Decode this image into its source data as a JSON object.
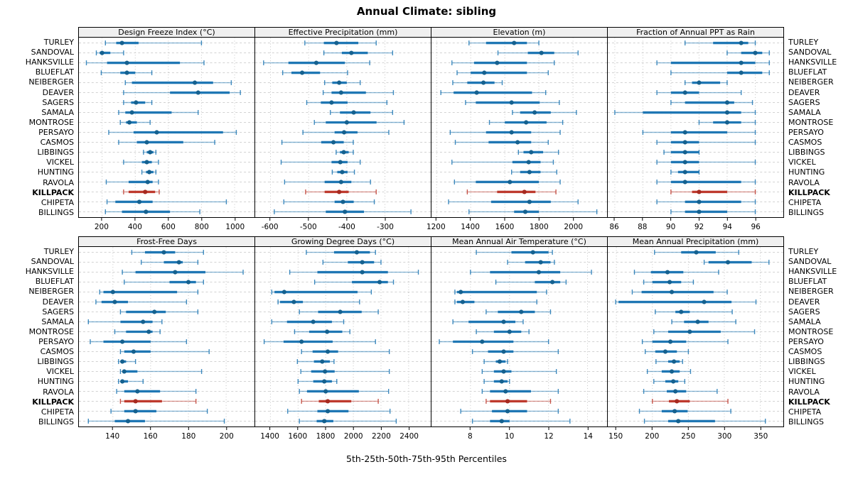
{
  "title": "Annual Climate: sibling",
  "footer": "5th-25th-50th-75th-95th Percentiles",
  "highlight_station": "KILLPACK",
  "stations": [
    "TURLEY",
    "SANDOVAL",
    "HANKSVILLE",
    "BLUEFLAT",
    "NEIBERGER",
    "DEAVER",
    "SAGERS",
    "SAMALA",
    "MONTROSE",
    "PERSAYO",
    "CASMOS",
    "LIBBINGS",
    "VICKEL",
    "HUNTING",
    "RAVOLA",
    "KILLPACK",
    "CHIPETA",
    "BILLINGS"
  ],
  "colors": {
    "series": "#1F77B4",
    "series_dot": "#15618F",
    "highlight": "#BE3A2E",
    "highlight_dot": "#A62A20",
    "grid_v": "#C4C4C4",
    "grid_h": "#D2D2D2",
    "header_bg": "#F0F0F0",
    "border": "#000000"
  },
  "chart_data": {
    "type": "dotplot",
    "subtype": "percentile-interval (5-25-50-75-95), lattice-style trellis, 2 rows x 4 panels",
    "percentiles": [
      5,
      25,
      50,
      75,
      95
    ],
    "legend": "none",
    "grid": "dashed",
    "panels": [
      {
        "title": "Design Freeze Index (°C)",
        "xlim": [
          60,
          1120
        ],
        "ticks": [
          200,
          400,
          600,
          800,
          1000
        ],
        "rows": [
          [
            220,
            285,
            320,
            420,
            800
          ],
          [
            165,
            185,
            200,
            250,
            330
          ],
          [
            105,
            230,
            350,
            670,
            815
          ],
          [
            195,
            310,
            350,
            400,
            500
          ],
          [
            340,
            380,
            760,
            870,
            980
          ],
          [
            330,
            610,
            780,
            970,
            1035
          ],
          [
            330,
            375,
            405,
            460,
            500
          ],
          [
            300,
            340,
            380,
            620,
            780
          ],
          [
            310,
            345,
            365,
            410,
            490
          ],
          [
            240,
            390,
            530,
            930,
            1010
          ],
          [
            300,
            410,
            470,
            690,
            880
          ],
          [
            450,
            470,
            490,
            510,
            525
          ],
          [
            330,
            440,
            470,
            500,
            540
          ],
          [
            440,
            465,
            485,
            510,
            525
          ],
          [
            225,
            360,
            475,
            505,
            540
          ],
          [
            330,
            360,
            460,
            520,
            545
          ],
          [
            230,
            280,
            425,
            505,
            950
          ],
          [
            220,
            320,
            465,
            610,
            790
          ]
        ]
      },
      {
        "title": "Effective Precipitation (mm)",
        "xlim": [
          -640,
          -180
        ],
        "ticks": [
          -600,
          -500,
          -400,
          -300
        ],
        "rows": [
          [
            -510,
            -460,
            -427,
            -370,
            -323
          ],
          [
            -460,
            -413,
            -388,
            -345,
            -280
          ],
          [
            -618,
            -553,
            -480,
            -405,
            -340
          ],
          [
            -568,
            -545,
            -517,
            -470,
            -398
          ],
          [
            -458,
            -438,
            -420,
            -400,
            -365
          ],
          [
            -462,
            -440,
            -415,
            -350,
            -278
          ],
          [
            -505,
            -468,
            -440,
            -398,
            -295
          ],
          [
            -443,
            -418,
            -382,
            -338,
            -280
          ],
          [
            -485,
            -455,
            -400,
            -322,
            -250
          ],
          [
            -515,
            -432,
            -407,
            -372,
            -290
          ],
          [
            -570,
            -467,
            -435,
            -408,
            -383
          ],
          [
            -428,
            -418,
            -408,
            -395,
            -383
          ],
          [
            -572,
            -440,
            -417,
            -398,
            -365
          ],
          [
            -438,
            -425,
            -412,
            -398,
            -380
          ],
          [
            -563,
            -458,
            -415,
            -388,
            -338
          ],
          [
            -508,
            -458,
            -420,
            -395,
            -323
          ],
          [
            -565,
            -432,
            -410,
            -382,
            -328
          ],
          [
            -590,
            -455,
            -405,
            -355,
            -232
          ]
        ]
      },
      {
        "title": "Elevation (m)",
        "xlim": [
          1170,
          2200
        ],
        "ticks": [
          1200,
          1400,
          1600,
          1800,
          2000
        ],
        "rows": [
          [
            1390,
            1490,
            1655,
            1730,
            1800
          ],
          [
            1560,
            1735,
            1815,
            1890,
            2030
          ],
          [
            1290,
            1420,
            1555,
            1730,
            1890
          ],
          [
            1320,
            1400,
            1480,
            1730,
            1855
          ],
          [
            1295,
            1380,
            1475,
            1540,
            1585
          ],
          [
            1225,
            1300,
            1435,
            1760,
            1840
          ],
          [
            1370,
            1430,
            1640,
            1805,
            1920
          ],
          [
            1645,
            1690,
            1775,
            1870,
            2020
          ],
          [
            1510,
            1600,
            1725,
            1845,
            1940
          ],
          [
            1280,
            1490,
            1640,
            1755,
            1925
          ],
          [
            1310,
            1505,
            1675,
            1755,
            1855
          ],
          [
            1680,
            1710,
            1755,
            1825,
            1915
          ],
          [
            1290,
            1645,
            1740,
            1810,
            1885
          ],
          [
            1640,
            1690,
            1745,
            1810,
            1905
          ],
          [
            1305,
            1430,
            1630,
            1800,
            1925
          ],
          [
            1380,
            1555,
            1715,
            1780,
            1900
          ],
          [
            1270,
            1520,
            1745,
            1870,
            2030
          ],
          [
            1390,
            1655,
            1720,
            1800,
            2140
          ]
        ]
      },
      {
        "title": "Fraction of Annual PPT as Rain",
        "xlim": [
          85.5,
          98
        ],
        "ticks": [
          86,
          88,
          90,
          92,
          94,
          96
        ],
        "rows": [
          [
            91,
            93,
            95,
            95.5,
            96
          ],
          [
            94,
            95,
            96,
            96.5,
            97
          ],
          [
            89,
            90,
            95,
            96,
            97
          ],
          [
            90,
            94,
            95,
            96.5,
            97
          ],
          [
            91,
            91.5,
            92,
            93.5,
            94
          ],
          [
            89,
            90,
            91,
            92,
            95
          ],
          [
            90,
            91,
            94,
            94.5,
            95.8
          ],
          [
            86,
            88,
            94,
            95,
            96
          ],
          [
            92,
            93,
            94,
            95,
            96
          ],
          [
            88,
            90,
            91,
            94,
            96
          ],
          [
            89,
            90,
            91,
            92,
            96
          ],
          [
            89.5,
            90,
            91,
            92,
            92
          ],
          [
            89,
            90,
            91,
            92,
            96
          ],
          [
            90,
            90.5,
            91,
            92,
            92
          ],
          [
            89,
            90,
            91,
            95,
            96
          ],
          [
            90,
            91.5,
            92,
            94,
            96
          ],
          [
            89,
            91,
            92,
            95,
            96
          ],
          [
            90,
            91,
            92,
            94,
            96
          ]
        ]
      },
      {
        "title": "Frost-Free Days",
        "xlim": [
          122,
          215
        ],
        "ticks": [
          140,
          160,
          180,
          200
        ],
        "rows": [
          [
            150,
            157,
            167,
            173,
            188
          ],
          [
            155,
            167,
            175,
            177,
            185
          ],
          [
            145,
            152,
            173,
            189,
            209
          ],
          [
            146,
            170,
            180,
            184,
            188
          ],
          [
            133,
            135,
            140,
            174,
            185
          ],
          [
            131,
            134,
            141,
            148,
            179
          ],
          [
            144,
            147,
            162,
            168,
            185
          ],
          [
            127,
            144,
            156,
            161,
            166
          ],
          [
            141,
            147,
            159,
            161,
            165
          ],
          [
            128,
            135,
            145,
            160,
            179
          ],
          [
            144,
            146,
            151,
            160,
            191
          ],
          [
            143,
            144,
            145,
            147,
            152
          ],
          [
            144,
            145,
            146,
            153,
            187
          ],
          [
            143,
            144,
            145,
            148,
            156
          ],
          [
            142,
            146,
            153,
            165,
            184
          ],
          [
            144,
            146,
            152,
            166,
            184
          ],
          [
            139,
            146,
            152,
            163,
            190
          ],
          [
            127,
            141,
            148,
            157,
            199
          ]
        ]
      },
      {
        "title": "Growing Degree Days (°C)",
        "xlim": [
          1290,
          2560
        ],
        "ticks": [
          1400,
          1600,
          1800,
          2000,
          2200,
          2400
        ],
        "rows": [
          [
            1660,
            1860,
            2025,
            2120,
            2160
          ],
          [
            1780,
            1960,
            2065,
            2150,
            2200
          ],
          [
            1540,
            1740,
            2065,
            2250,
            2470
          ],
          [
            1720,
            1990,
            2190,
            2250,
            2290
          ],
          [
            1410,
            1430,
            1500,
            2030,
            2130
          ],
          [
            1455,
            1470,
            1570,
            1635,
            2045
          ],
          [
            1610,
            1745,
            1905,
            2060,
            2180
          ],
          [
            1410,
            1520,
            1710,
            1845,
            1930
          ],
          [
            1575,
            1680,
            1810,
            1920,
            1975
          ],
          [
            1355,
            1495,
            1625,
            1850,
            2160
          ],
          [
            1625,
            1705,
            1815,
            1890,
            2260
          ],
          [
            1595,
            1715,
            1775,
            1830,
            1860
          ],
          [
            1620,
            1695,
            1795,
            1865,
            2260
          ],
          [
            1600,
            1710,
            1790,
            1845,
            1880
          ],
          [
            1610,
            1665,
            1800,
            2040,
            2255
          ],
          [
            1625,
            1750,
            1815,
            1985,
            2180
          ],
          [
            1525,
            1740,
            1815,
            1965,
            2265
          ],
          [
            1610,
            1735,
            1790,
            1855,
            2310
          ]
        ]
      },
      {
        "title": "Mean Annual Air Temperature (°C)",
        "xlim": [
          6,
          15
        ],
        "ticks": [
          8,
          10,
          12,
          14
        ],
        "rows": [
          [
            8.3,
            10.1,
            11.2,
            12.0,
            12.2
          ],
          [
            9.9,
            10.8,
            11.6,
            12.1,
            12.3
          ],
          [
            8.0,
            9.0,
            11.5,
            12.6,
            14.2
          ],
          [
            9.3,
            11.3,
            12.2,
            12.6,
            12.9
          ],
          [
            7.2,
            7.3,
            7.5,
            11.4,
            11.9
          ],
          [
            7.2,
            7.3,
            7.6,
            8.2,
            11.4
          ],
          [
            8.8,
            9.4,
            10.6,
            11.3,
            12.1
          ],
          [
            7.1,
            7.9,
            9.7,
            10.3,
            10.7
          ],
          [
            8.3,
            9.2,
            10.0,
            10.6,
            11.0
          ],
          [
            6.4,
            7.1,
            8.6,
            10.2,
            12.0
          ],
          [
            8.1,
            8.9,
            9.7,
            10.2,
            12.5
          ],
          [
            8.7,
            9.3,
            9.5,
            9.8,
            9.9
          ],
          [
            8.6,
            9.2,
            9.7,
            10.1,
            12.4
          ],
          [
            8.7,
            9.2,
            9.6,
            9.9,
            10.0
          ],
          [
            8.6,
            9.0,
            9.8,
            11.1,
            12.5
          ],
          [
            8.8,
            9.0,
            9.9,
            10.9,
            12.1
          ],
          [
            7.5,
            9.1,
            9.9,
            10.9,
            12.5
          ],
          [
            8.1,
            9.0,
            9.6,
            10.0,
            13.1
          ]
        ]
      },
      {
        "title": "Mean Annual Precipitation (mm)",
        "xlim": [
          138,
          382
        ],
        "ticks": [
          150,
          200,
          250,
          300,
          350
        ],
        "rows": [
          [
            203,
            240,
            261,
            288,
            320
          ],
          [
            272,
            278,
            305,
            338,
            362
          ],
          [
            175,
            198,
            221,
            243,
            292
          ],
          [
            188,
            200,
            224,
            240,
            257
          ],
          [
            172,
            185,
            227,
            285,
            304
          ],
          [
            149,
            153,
            272,
            310,
            344
          ],
          [
            204,
            232,
            240,
            252,
            311
          ],
          [
            227,
            244,
            263,
            278,
            316
          ],
          [
            202,
            222,
            252,
            295,
            342
          ],
          [
            186,
            200,
            225,
            247,
            305
          ],
          [
            190,
            204,
            218,
            234,
            250
          ],
          [
            205,
            222,
            230,
            238,
            242
          ],
          [
            193,
            213,
            227,
            238,
            253
          ],
          [
            202,
            218,
            229,
            236,
            245
          ],
          [
            188,
            220,
            232,
            247,
            290
          ],
          [
            200,
            223,
            234,
            252,
            305
          ],
          [
            182,
            213,
            231,
            249,
            309
          ],
          [
            189,
            222,
            236,
            287,
            357
          ]
        ]
      }
    ]
  }
}
